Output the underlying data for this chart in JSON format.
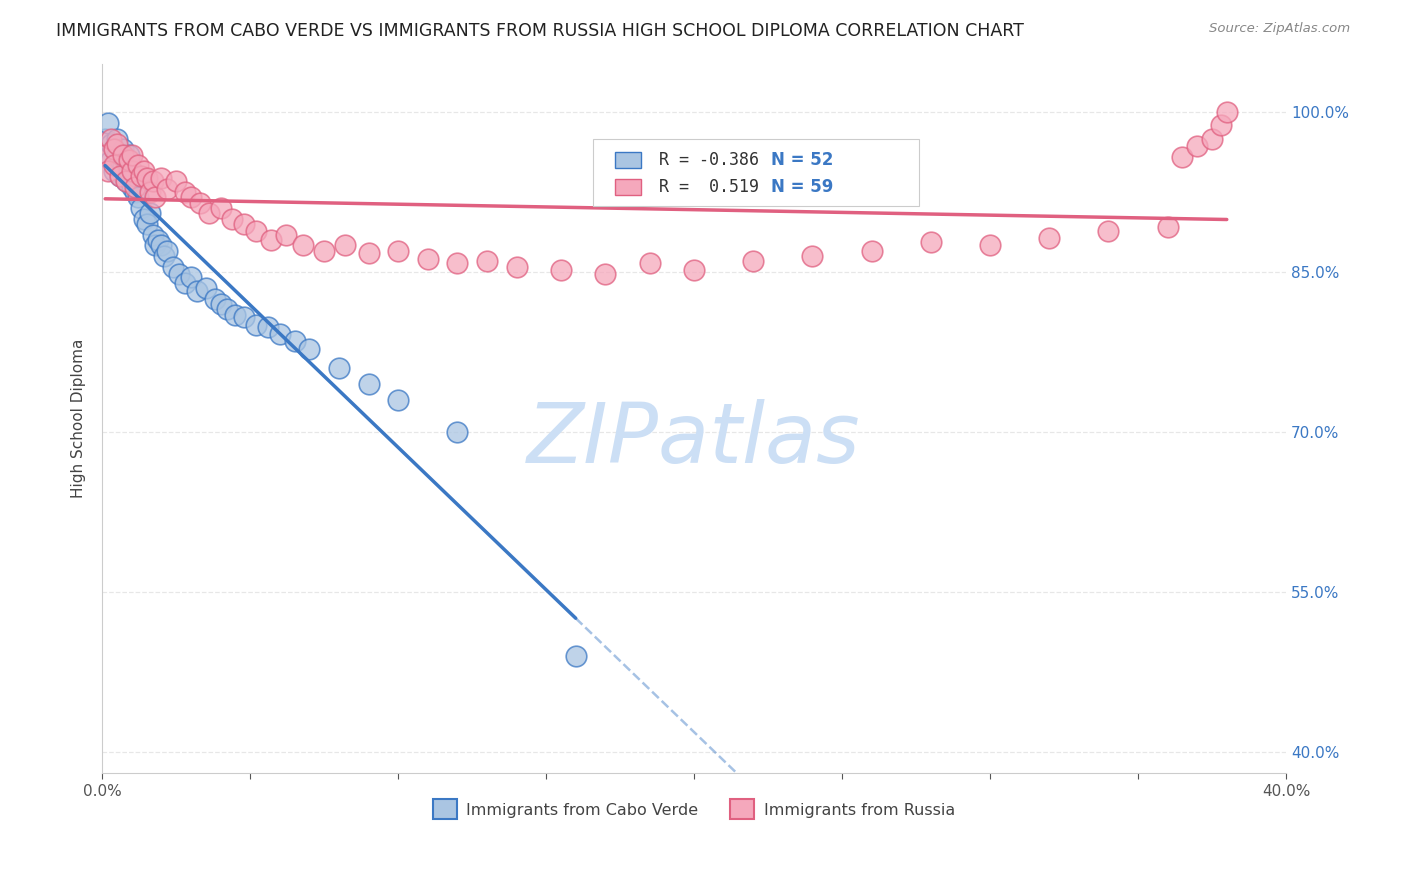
{
  "title": "IMMIGRANTS FROM CABO VERDE VS IMMIGRANTS FROM RUSSIA HIGH SCHOOL DIPLOMA CORRELATION CHART",
  "source": "Source: ZipAtlas.com",
  "ylabel": "High School Diploma",
  "cabo_verde_R": -0.386,
  "cabo_verde_N": 52,
  "russia_R": 0.519,
  "russia_N": 59,
  "cabo_verde_color": "#aac5e2",
  "russia_color": "#f5a8bc",
  "cabo_verde_line_color": "#3b78c4",
  "russia_line_color": "#e06080",
  "watermark_color": "#ccdff5",
  "xlim": [
    0.0,
    0.4
  ],
  "ylim": [
    0.38,
    1.045
  ],
  "ytick_vals": [
    0.4,
    0.55,
    0.7,
    0.85,
    1.0
  ],
  "ytick_labels": [
    "40.0%",
    "55.0%",
    "70.0%",
    "85.0%",
    "100.0%"
  ],
  "legend_R_cv": "R = -0.386",
  "legend_N_cv": "N = 52",
  "legend_R_ru": "R =  0.519",
  "legend_N_ru": "N = 59",
  "legend_label_cv": "Immigrants from Cabo Verde",
  "legend_label_ru": "Immigrants from Russia",
  "cabo_verde_x": [
    0.001,
    0.002,
    0.003,
    0.003,
    0.004,
    0.004,
    0.005,
    0.005,
    0.006,
    0.006,
    0.007,
    0.007,
    0.008,
    0.008,
    0.009,
    0.009,
    0.01,
    0.01,
    0.011,
    0.011,
    0.012,
    0.013,
    0.014,
    0.015,
    0.016,
    0.017,
    0.018,
    0.019,
    0.02,
    0.021,
    0.022,
    0.024,
    0.026,
    0.028,
    0.03,
    0.032,
    0.035,
    0.038,
    0.04,
    0.042,
    0.045,
    0.048,
    0.052,
    0.056,
    0.06,
    0.065,
    0.07,
    0.08,
    0.09,
    0.1,
    0.12,
    0.16
  ],
  "cabo_verde_y": [
    0.975,
    0.99,
    0.955,
    0.97,
    0.945,
    0.965,
    0.96,
    0.975,
    0.94,
    0.955,
    0.95,
    0.965,
    0.935,
    0.955,
    0.945,
    0.96,
    0.93,
    0.945,
    0.925,
    0.94,
    0.92,
    0.91,
    0.9,
    0.895,
    0.905,
    0.885,
    0.875,
    0.88,
    0.875,
    0.865,
    0.87,
    0.855,
    0.848,
    0.84,
    0.845,
    0.832,
    0.835,
    0.825,
    0.82,
    0.815,
    0.81,
    0.808,
    0.8,
    0.798,
    0.792,
    0.785,
    0.778,
    0.76,
    0.745,
    0.73,
    0.7,
    0.49
  ],
  "russia_x": [
    0.001,
    0.002,
    0.003,
    0.004,
    0.004,
    0.005,
    0.006,
    0.007,
    0.008,
    0.009,
    0.01,
    0.01,
    0.011,
    0.012,
    0.013,
    0.014,
    0.015,
    0.016,
    0.017,
    0.018,
    0.02,
    0.022,
    0.025,
    0.028,
    0.03,
    0.033,
    0.036,
    0.04,
    0.044,
    0.048,
    0.052,
    0.057,
    0.062,
    0.068,
    0.075,
    0.082,
    0.09,
    0.1,
    0.11,
    0.12,
    0.13,
    0.14,
    0.155,
    0.17,
    0.185,
    0.2,
    0.22,
    0.24,
    0.26,
    0.28,
    0.3,
    0.32,
    0.34,
    0.36,
    0.365,
    0.37,
    0.375,
    0.378,
    0.38
  ],
  "russia_y": [
    0.96,
    0.945,
    0.975,
    0.965,
    0.95,
    0.97,
    0.94,
    0.96,
    0.935,
    0.955,
    0.945,
    0.96,
    0.93,
    0.95,
    0.94,
    0.945,
    0.938,
    0.925,
    0.935,
    0.92,
    0.938,
    0.928,
    0.935,
    0.925,
    0.92,
    0.915,
    0.905,
    0.91,
    0.9,
    0.895,
    0.888,
    0.88,
    0.885,
    0.875,
    0.87,
    0.875,
    0.868,
    0.87,
    0.862,
    0.858,
    0.86,
    0.855,
    0.852,
    0.848,
    0.858,
    0.852,
    0.86,
    0.865,
    0.87,
    0.878,
    0.875,
    0.882,
    0.888,
    0.892,
    0.958,
    0.968,
    0.975,
    0.988,
    1.0
  ]
}
